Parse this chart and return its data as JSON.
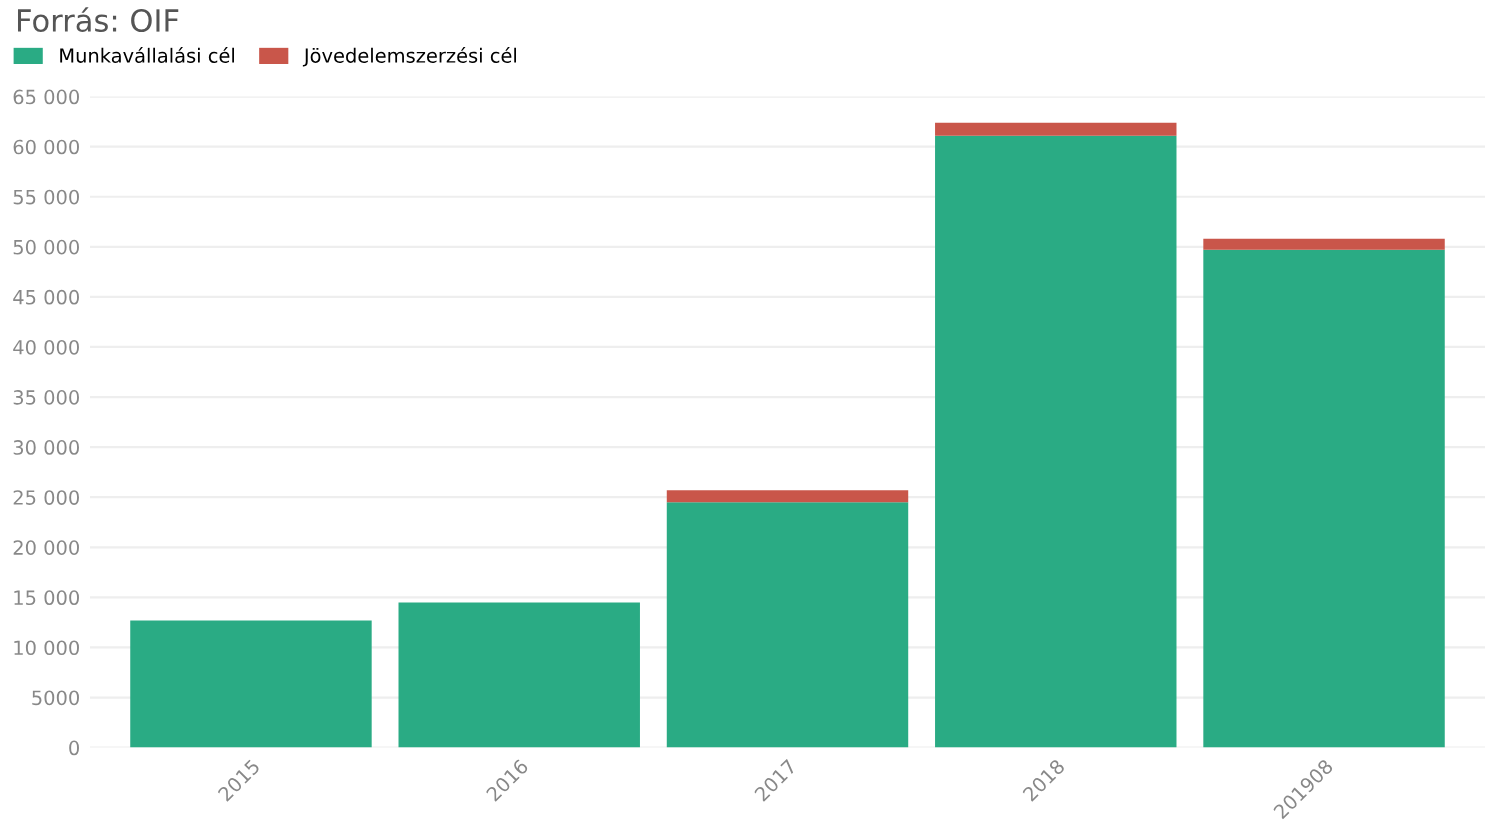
{
  "chart_data": {
    "type": "bar",
    "stacked": true,
    "categories": [
      "2015",
      "2016",
      "2017",
      "2018",
      "201908"
    ],
    "series": [
      {
        "name": "Munkavállalási cél",
        "color": "#2aab84",
        "values": [
          12700,
          14500,
          24500,
          61100,
          49700
        ]
      },
      {
        "name": "Jövedelemszerzési cél",
        "color": "#c9564a",
        "values": [
          0,
          0,
          1200,
          1300,
          1100
        ]
      }
    ],
    "ylim": [
      0,
      65000
    ],
    "yticks": [
      0,
      5000,
      {
        "value": 10000,
        "label": "10 000"
      },
      {
        "value": 15000,
        "label": "15 000"
      },
      {
        "value": 20000,
        "label": "20 000"
      },
      {
        "value": 25000,
        "label": "25 000"
      },
      {
        "value": 30000,
        "label": "30 000"
      },
      {
        "value": 35000,
        "label": "35 000"
      },
      {
        "value": 40000,
        "label": "40 000"
      },
      {
        "value": 45000,
        "label": "45 000"
      },
      {
        "value": 50000,
        "label": "50 000"
      },
      {
        "value": 55000,
        "label": "55 000"
      },
      {
        "value": 60000,
        "label": "60 000"
      },
      {
        "value": 65000,
        "label": "65 000"
      }
    ],
    "grid": "y",
    "legend": "top left",
    "annotations": [
      "Forrás: OIF"
    ]
  }
}
